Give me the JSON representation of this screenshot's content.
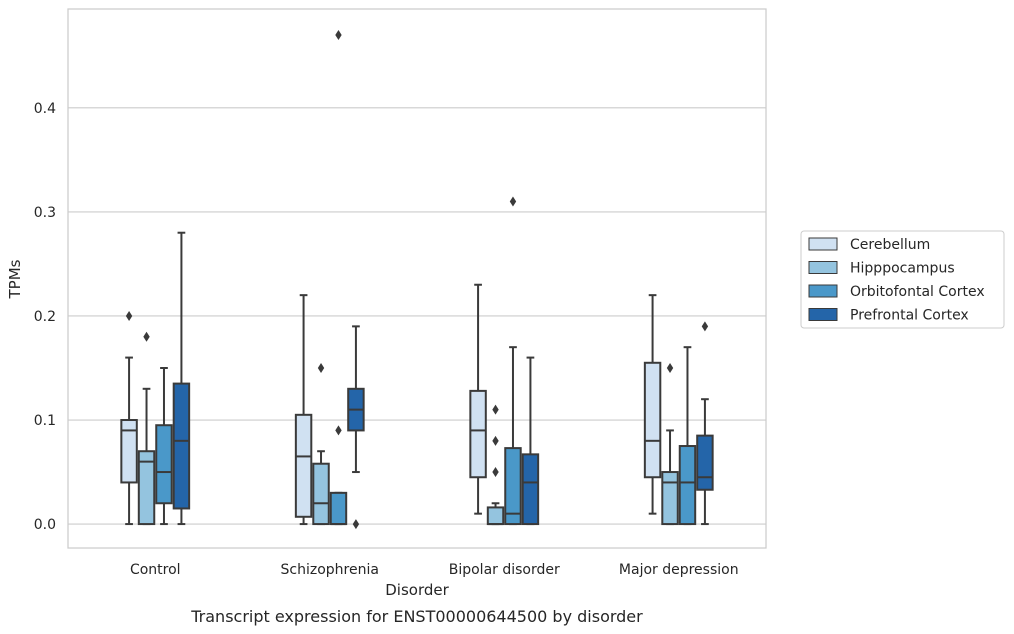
{
  "chart_data": {
    "type": "boxplot",
    "caption": "Transcript expression for ENST00000644500 by disorder",
    "xlabel": "Disorder",
    "ylabel": "TPMs",
    "ylim": [
      -0.023,
      0.495
    ],
    "yticks": [
      0.0,
      0.1,
      0.2,
      0.3,
      0.4
    ],
    "ytick_labels": [
      "0.0",
      "0.1",
      "0.2",
      "0.3",
      "0.4"
    ],
    "grid": "horizontal",
    "legend_position": "right",
    "categories": [
      "Control",
      "Schizophrenia",
      "Bipolar disorder",
      "Major depression"
    ],
    "series": [
      {
        "name": "Cerebellum",
        "color": "#d0e1f2",
        "boxes": [
          {
            "whislo": 0.0,
            "q1": 0.04,
            "med": 0.09,
            "q3": 0.1,
            "whishi": 0.16,
            "fliers": [
              0.2
            ]
          },
          {
            "whislo": 0.0,
            "q1": 0.007,
            "med": 0.065,
            "q3": 0.105,
            "whishi": 0.22,
            "fliers": []
          },
          {
            "whislo": 0.01,
            "q1": 0.045,
            "med": 0.09,
            "q3": 0.128,
            "whishi": 0.23,
            "fliers": []
          },
          {
            "whislo": 0.01,
            "q1": 0.045,
            "med": 0.08,
            "q3": 0.155,
            "whishi": 0.22,
            "fliers": []
          }
        ]
      },
      {
        "name": "Hipppocampus",
        "color": "#94c4df",
        "boxes": [
          {
            "whislo": 0.0,
            "q1": 0.0,
            "med": 0.06,
            "q3": 0.07,
            "whishi": 0.13,
            "fliers": [
              0.18
            ]
          },
          {
            "whislo": 0.0,
            "q1": 0.0,
            "med": 0.02,
            "q3": 0.058,
            "whishi": 0.07,
            "fliers": [
              0.15
            ]
          },
          {
            "whislo": 0.0,
            "q1": 0.0,
            "med": 0.0,
            "q3": 0.016,
            "whishi": 0.02,
            "fliers": [
              0.05,
              0.08,
              0.11
            ]
          },
          {
            "whislo": 0.0,
            "q1": 0.0,
            "med": 0.04,
            "q3": 0.05,
            "whishi": 0.09,
            "fliers": [
              0.15
            ]
          }
        ]
      },
      {
        "name": "Orbitofontal Cortex",
        "color": "#4a98c9",
        "boxes": [
          {
            "whislo": 0.0,
            "q1": 0.02,
            "med": 0.05,
            "q3": 0.095,
            "whishi": 0.15,
            "fliers": []
          },
          {
            "whislo": 0.0,
            "q1": 0.0,
            "med": 0.0,
            "q3": 0.03,
            "whishi": 0.03,
            "fliers": [
              0.09,
              0.47
            ]
          },
          {
            "whislo": 0.0,
            "q1": 0.0,
            "med": 0.01,
            "q3": 0.073,
            "whishi": 0.17,
            "fliers": [
              0.31
            ]
          },
          {
            "whislo": 0.0,
            "q1": 0.0,
            "med": 0.04,
            "q3": 0.075,
            "whishi": 0.17,
            "fliers": []
          }
        ]
      },
      {
        "name": "Prefrontal Cortex",
        "color": "#2465a9",
        "boxes": [
          {
            "whislo": 0.0,
            "q1": 0.015,
            "med": 0.08,
            "q3": 0.135,
            "whishi": 0.28,
            "fliers": []
          },
          {
            "whislo": 0.05,
            "q1": 0.09,
            "med": 0.11,
            "q3": 0.13,
            "whishi": 0.19,
            "fliers": [
              0.0
            ]
          },
          {
            "whislo": 0.0,
            "q1": 0.0,
            "med": 0.04,
            "q3": 0.067,
            "whishi": 0.16,
            "fliers": []
          },
          {
            "whislo": 0.0,
            "q1": 0.033,
            "med": 0.045,
            "q3": 0.085,
            "whishi": 0.12,
            "fliers": [
              0.19
            ]
          }
        ]
      }
    ]
  }
}
